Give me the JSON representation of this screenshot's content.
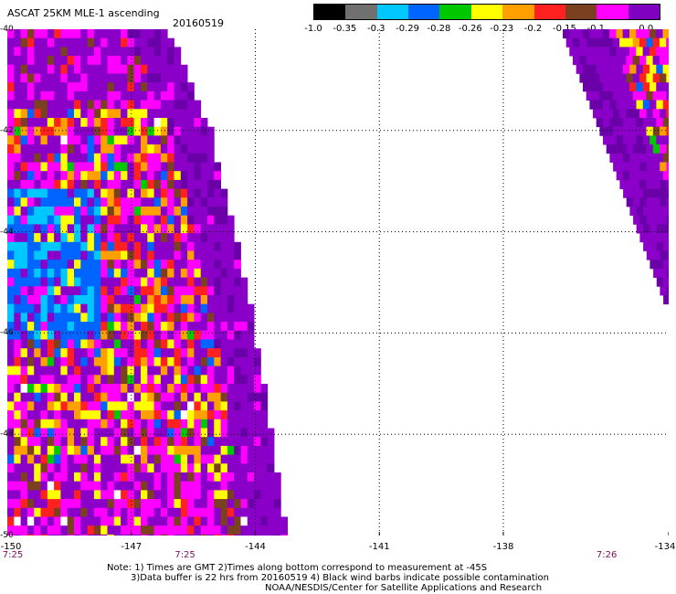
{
  "title": "ASCAT 25KM MLE-1 ascending",
  "date": "20160519",
  "colorbar": {
    "labels": [
      "-1.0",
      "-0.35",
      "-0.3",
      "-0.29",
      "-0.28",
      "-0.26",
      "-0.23",
      "-0.2",
      "-0.15",
      "-0.1",
      "0.0"
    ],
    "colors": [
      "#000000",
      "#707070",
      "#00c8ff",
      "#0064ff",
      "#00c800",
      "#ffff00",
      "#ffa000",
      "#ff2020",
      "#7a4020",
      "#ff00ff",
      "#8000c0"
    ]
  },
  "map": {
    "lon_range": [
      -150,
      -134
    ],
    "lat_range": [
      -50,
      -40
    ],
    "x_ticks": [
      "-150",
      "-147",
      "-144",
      "-141",
      "-138",
      "-134"
    ],
    "y_ticks": [
      "-40",
      "-42",
      "-44",
      "-46",
      "-48",
      "-50"
    ],
    "times": [
      {
        "label": "7:25",
        "lon": -150
      },
      {
        "label": "7:25",
        "lon": -145.7
      },
      {
        "label": "7:26",
        "lon": -135.5
      }
    ]
  },
  "notes": {
    "line1": "Note: 1) Times are GMT 2)Times along bottom correspond to measurement at -45S",
    "line2": "3)Data buffer is 22 hrs from 20160519 4) Black wind barbs indicate possible contamination",
    "line3": "NOAA/NESDIS/Center for Satellite Applications and Research"
  }
}
